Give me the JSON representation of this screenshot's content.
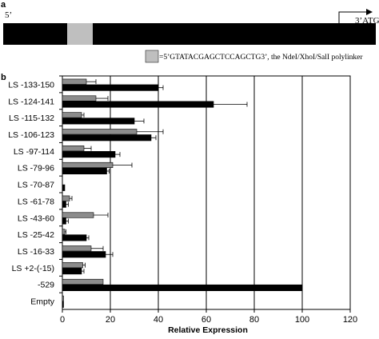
{
  "panel_a": {
    "label": "a",
    "five_prime": "5’",
    "three_prime": "3’ATG",
    "legend_text": "=5’GTATACGAGCTCCAGCTG3’, the NdeI/XhoI/SalI polylinker"
  },
  "panel_b": {
    "label": "b"
  },
  "colors": {
    "series1": "#8c8c8c",
    "series2": "#000000",
    "bar_outline": "#000000"
  },
  "chart_data": {
    "type": "bar",
    "orientation": "horizontal",
    "categories": [
      "LS -133-150",
      "LS -124-141",
      "LS -115-132",
      "LS -106-123",
      "LS -97-114",
      "LS -79-96",
      "LS -70-87",
      "LS -61-78",
      "LS -43-60",
      "LS -25-42",
      "LS -16-33",
      "LS +2-(-15)",
      "-529",
      "Empty"
    ],
    "series": [
      {
        "values": [
          10,
          14,
          8,
          31,
          9,
          21,
          0,
          3,
          13,
          1,
          12,
          8.5,
          17,
          0.5
        ],
        "errors": [
          4,
          5,
          1,
          11,
          3,
          8,
          0,
          1,
          6,
          0.5,
          5,
          1,
          0,
          0
        ]
      },
      {
        "values": [
          40,
          63,
          30,
          37,
          22,
          18.5,
          1,
          1.5,
          1.5,
          10,
          18,
          8,
          100,
          0.5
        ],
        "errors": [
          2,
          14,
          4,
          2,
          2,
          1,
          0,
          1,
          1,
          1,
          3,
          1,
          0,
          0
        ]
      }
    ],
    "xlabel": "Relative Expression",
    "xlim": [
      0,
      120
    ],
    "xticks": [
      0,
      20,
      40,
      60,
      80,
      100,
      120
    ],
    "grid": "vertical"
  }
}
